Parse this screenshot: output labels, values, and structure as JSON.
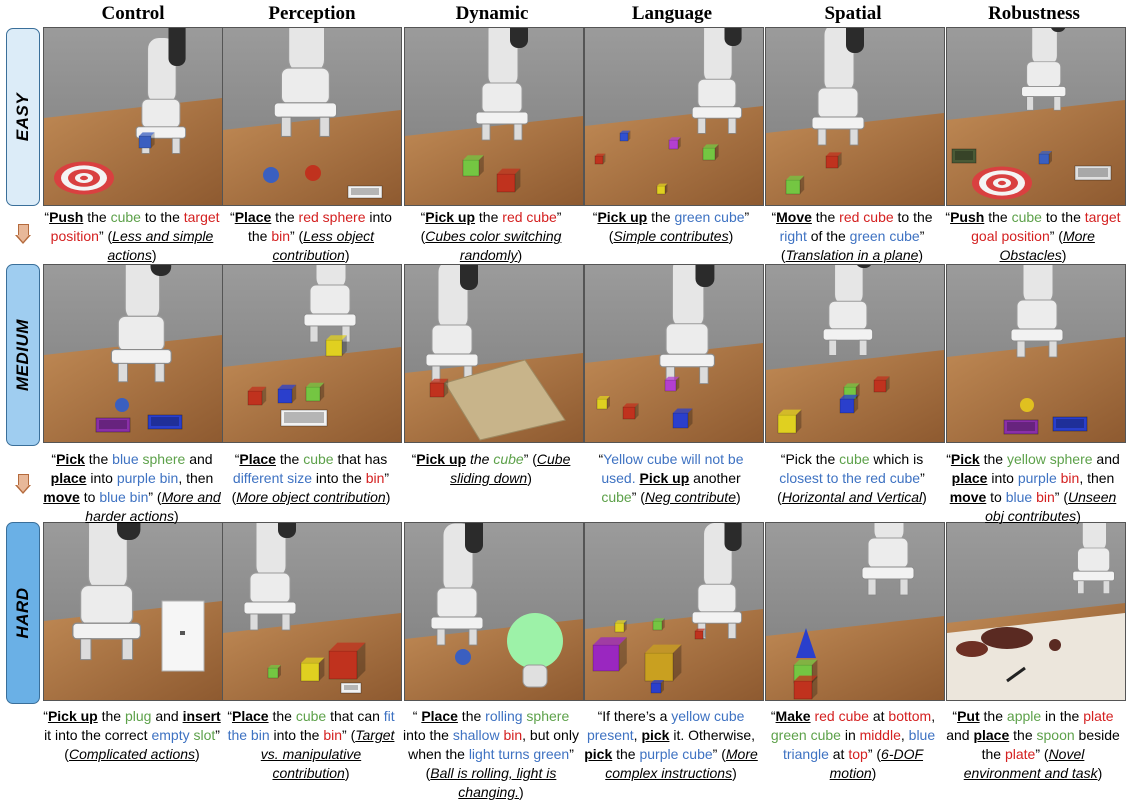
{
  "columns": [
    "Control",
    "Perception",
    "Dynamic",
    "Language",
    "Spatial",
    "Robustness"
  ],
  "levels": [
    "EASY",
    "MEDIUM",
    "HARD"
  ],
  "captions": {
    "easy": [
      [
        "“",
        "Push",
        " the ",
        "cube",
        " to the ",
        "target position",
        "” (",
        "Less and simple actions",
        ")"
      ],
      [
        "“",
        "Place",
        " the ",
        "red sphere",
        " into the ",
        "bin",
        "” (",
        "Less object contribution",
        ")"
      ],
      [
        "“",
        "Pick up",
        " the ",
        "red cube",
        "” (",
        "Cubes color switching randomly",
        ")"
      ],
      [
        "“",
        "Pick up",
        " the ",
        "green cube",
        "” (",
        "Simple contributes",
        ")"
      ],
      [
        "“",
        "Move",
        " the ",
        "red cube",
        " to the ",
        "right",
        " of the ",
        "green cube",
        "” (",
        "Translation in a plane",
        ")"
      ],
      [
        "“",
        "Push",
        " the ",
        "cube",
        " to the ",
        "target goal position",
        "” (",
        "More Obstacles",
        ")"
      ]
    ],
    "medium": [
      [
        "“",
        "Pick",
        " the ",
        "blue",
        " ",
        "sphere",
        " and ",
        "place",
        " into ",
        "purple bin",
        ", then ",
        "move",
        " to ",
        "blue bin",
        "” (",
        "More and harder actions",
        ")"
      ],
      [
        "“",
        "Place",
        " the ",
        "cube",
        " that has ",
        "different size",
        " into the ",
        "bin",
        "” (",
        "More object contribution",
        ")"
      ],
      [
        "“",
        "Pick up",
        " ",
        "the ",
        "cube",
        "” (",
        "Cube sliding down",
        ")"
      ],
      [
        "“",
        "Yellow cube will not be used.",
        " ",
        "Pick up",
        " another ",
        "cube",
        "” (",
        "Neg contribute",
        ")"
      ],
      [
        "“",
        "Pick the ",
        "cube",
        " which is ",
        "closest to the red cube",
        "” (",
        "Horizontal and Vertical",
        ")"
      ],
      [
        "“",
        "Pick",
        " the ",
        "yellow",
        " ",
        "sphere",
        " and ",
        "place",
        " into ",
        "purple",
        " ",
        "bin",
        ", then ",
        "move",
        " to ",
        "blue",
        " ",
        "bin",
        "” (",
        "Unseen obj contributes",
        ")"
      ]
    ],
    "hard": [
      [
        "“",
        "Pick up",
        " the ",
        "plug",
        " and ",
        "insert",
        " it into the correct ",
        "empty",
        " ",
        "slot",
        "” (",
        "Complicated actions",
        ")"
      ],
      [
        "“",
        "Place",
        " the ",
        "cube",
        " that can ",
        "fit the bin",
        " into the ",
        "bin",
        "” (",
        "Target vs. manipulative contribution",
        ")"
      ],
      [
        "“ ",
        "Place",
        " the ",
        "rolling",
        " ",
        "sphere",
        " into the ",
        "shallow",
        " ",
        "bin",
        ", but only when the ",
        "light turns green",
        "” (",
        "Ball is rolling, light is changing.",
        ")"
      ],
      [
        "“If there’s a ",
        "yellow cube",
        " ",
        "present",
        ", ",
        "pick",
        " it. Otherwise, ",
        "pick",
        " the ",
        "purple cube",
        "” (",
        "More complex instructions",
        ")"
      ],
      [
        "“",
        "Make",
        " ",
        "red cube",
        " at ",
        "bottom",
        ", ",
        "green cube",
        " in ",
        "middle",
        ", ",
        "blue triangle",
        " at ",
        "top",
        "” (",
        "6-DOF motion",
        ")"
      ],
      [
        "“",
        "Put",
        " the ",
        "apple",
        " in the ",
        "plate",
        " and ",
        "place",
        " the ",
        "spoon",
        " beside the ",
        "plate",
        "” (",
        "Novel environment and task",
        ")"
      ]
    ]
  },
  "colors": {
    "green": "#5da14a",
    "red": "#d42020",
    "blue": "#3e72c2",
    "band_easy": "#dcecf8",
    "band_medium": "#9fcdf0",
    "band_hard": "#6ab0e6",
    "table_wood": "#b07a48",
    "sky_grey": "#8c8c8c"
  }
}
